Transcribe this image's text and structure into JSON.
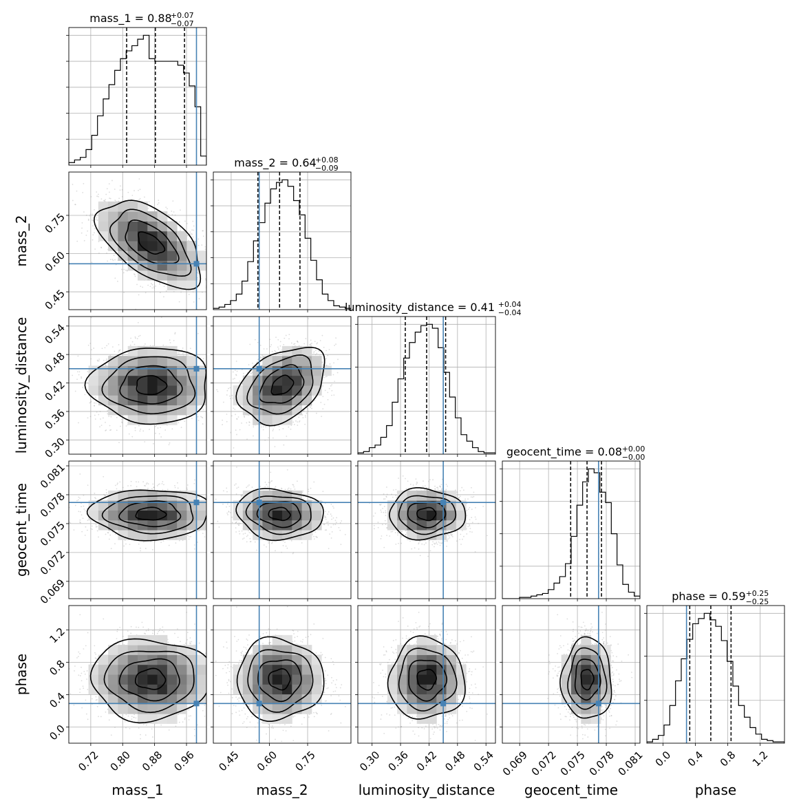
{
  "chart_data": {
    "type": "corner",
    "parameters": [
      {
        "name": "mass_1",
        "label": "mass_1",
        "range": [
          0.665,
          1.01
        ],
        "ticks": [
          0.72,
          0.8,
          0.88,
          0.96
        ],
        "tick_labels": [
          "0.72",
          "0.80",
          "0.88",
          "0.96"
        ],
        "truth": 0.985,
        "quantiles": [
          0.81,
          0.882,
          0.955
        ],
        "title_median": "0.88",
        "title_plus": "+0.07",
        "title_minus": "−0.07"
      },
      {
        "name": "mass_2",
        "label": "mass_2",
        "range": [
          0.38,
          0.92
        ],
        "ticks": [
          0.45,
          0.6,
          0.75
        ],
        "tick_labels": [
          "0.45",
          "0.60",
          "0.75"
        ],
        "truth": 0.56,
        "quantiles": [
          0.555,
          0.64,
          0.72
        ],
        "title_median": "0.64",
        "title_plus": "+0.08",
        "title_minus": "−0.09"
      },
      {
        "name": "luminosity_distance",
        "label": "luminosity_distance",
        "range": [
          0.27,
          0.56
        ],
        "ticks": [
          0.3,
          0.36,
          0.42,
          0.48,
          0.54
        ],
        "tick_labels": [
          "0.30",
          "0.36",
          "0.42",
          "0.48",
          "0.54"
        ],
        "truth": 0.45,
        "quantiles": [
          0.37,
          0.415,
          0.455
        ],
        "title_median": "0.41",
        "title_plus": "+0.04",
        "title_minus": "−0.04"
      },
      {
        "name": "geocent_time",
        "label": "geocent_time",
        "range": [
          0.0672,
          0.0815
        ],
        "ticks": [
          0.069,
          0.072,
          0.075,
          0.078,
          0.081
        ],
        "tick_labels": [
          "0.069",
          "0.072",
          "0.075",
          "0.078",
          "0.081"
        ],
        "truth": 0.0772,
        "quantiles": [
          0.0743,
          0.076,
          0.0775
        ],
        "title_median": "0.08",
        "title_plus": "+0.00",
        "title_minus": "−0.00"
      },
      {
        "name": "phase",
        "label": "phase",
        "range": [
          -0.2,
          1.5
        ],
        "ticks": [
          0.0,
          0.4,
          0.8,
          1.2
        ],
        "tick_labels": [
          "0.0",
          "0.4",
          "0.8",
          "1.2"
        ],
        "truth": 0.29,
        "quantiles": [
          0.33,
          0.59,
          0.84
        ],
        "title_median": "0.59",
        "title_plus": "+0.25",
        "title_minus": "−0.25"
      }
    ],
    "marginals": [
      [
        0.02,
        0.04,
        0.06,
        0.12,
        0.23,
        0.38,
        0.51,
        0.62,
        0.73,
        0.82,
        0.88,
        0.92,
        0.97,
        1.0,
        0.82,
        0.8,
        0.8,
        0.8,
        0.8,
        0.77,
        0.71,
        0.61,
        0.45,
        0.07
      ],
      [
        0.01,
        0.02,
        0.04,
        0.07,
        0.12,
        0.22,
        0.37,
        0.53,
        0.67,
        0.82,
        0.93,
        0.98,
        1.0,
        0.95,
        0.84,
        0.73,
        0.55,
        0.38,
        0.23,
        0.12,
        0.07,
        0.03,
        0.02,
        0.01
      ],
      [
        0.01,
        0.02,
        0.05,
        0.07,
        0.13,
        0.22,
        0.4,
        0.58,
        0.74,
        0.86,
        0.94,
        0.99,
        1.0,
        0.97,
        0.82,
        0.63,
        0.44,
        0.28,
        0.15,
        0.1,
        0.05,
        0.02,
        0.01,
        0.01
      ],
      [
        0.0,
        0.0,
        0.0,
        0.01,
        0.01,
        0.02,
        0.03,
        0.04,
        0.07,
        0.12,
        0.17,
        0.27,
        0.48,
        0.72,
        0.9,
        1.0,
        0.97,
        0.82,
        0.74,
        0.5,
        0.26,
        0.11,
        0.05,
        0.02
      ],
      [
        0.01,
        0.03,
        0.06,
        0.14,
        0.29,
        0.48,
        0.65,
        0.8,
        0.92,
        0.96,
        1.0,
        0.95,
        0.9,
        0.79,
        0.63,
        0.44,
        0.29,
        0.2,
        0.12,
        0.07,
        0.03,
        0.02,
        0.01,
        0.01
      ]
    ],
    "histogram_ticks": [
      [
        0.2,
        0.4,
        0.6,
        0.8,
        1.0
      ],
      [
        0.2,
        0.4,
        0.6,
        0.8,
        1.0
      ],
      [
        0.33,
        0.67,
        1.0
      ],
      [
        0.25,
        0.5,
        0.75,
        1.0
      ],
      [
        0.33,
        0.67,
        1.0
      ]
    ],
    "joint_modes": {
      "1,0": {
        "mode": [
          0.87,
          0.64
        ],
        "sigma": [
          0.065,
          0.085
        ],
        "rho": -0.55
      },
      "2,0": {
        "mode": [
          0.87,
          0.415
        ],
        "sigma": [
          0.075,
          0.04
        ],
        "rho": 0.0
      },
      "2,1": {
        "mode": [
          0.65,
          0.415
        ],
        "sigma": [
          0.085,
          0.04
        ],
        "rho": 0.35
      },
      "3,0": {
        "mode": [
          0.87,
          0.076
        ],
        "sigma": [
          0.075,
          0.0013
        ],
        "rho": 0.0
      },
      "3,1": {
        "mode": [
          0.64,
          0.076
        ],
        "sigma": [
          0.085,
          0.0013
        ],
        "rho": -0.1
      },
      "3,2": {
        "mode": [
          0.415,
          0.076
        ],
        "sigma": [
          0.04,
          0.0013
        ],
        "rho": 0.0
      },
      "4,0": {
        "mode": [
          0.87,
          0.59
        ],
        "sigma": [
          0.075,
          0.25
        ],
        "rho": 0.0
      },
      "4,1": {
        "mode": [
          0.64,
          0.59
        ],
        "sigma": [
          0.085,
          0.25
        ],
        "rho": 0.0
      },
      "4,2": {
        "mode": [
          0.415,
          0.59
        ],
        "sigma": [
          0.04,
          0.25
        ],
        "rho": 0.0
      },
      "4,3": {
        "mode": [
          0.076,
          0.59
        ],
        "sigma": [
          0.0013,
          0.25
        ],
        "rho": 0.0
      }
    },
    "contour_levels_sigma": [
      0.5,
      1.0,
      1.5,
      2.0
    ],
    "grid": true,
    "colors": {
      "truth": "#4682b4",
      "line": "#000000",
      "samples": "#9a9a9a",
      "grid": "#b0b0b0"
    }
  }
}
